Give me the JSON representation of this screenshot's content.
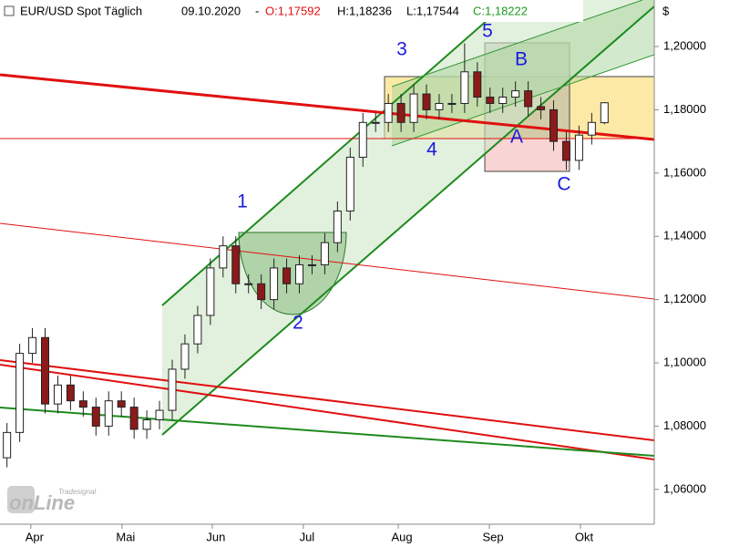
{
  "chart_data": {
    "type": "candlestick",
    "title": "EUR/USD Spot Täglich",
    "date": "09.10.2020",
    "quote": {
      "open": "O:1,17592",
      "high": "H:1,18236",
      "low": "L:1,17544",
      "close": "C:1,18222"
    },
    "y_axis_label": "$",
    "x": [
      1,
      4,
      7,
      10,
      13,
      16,
      19,
      22,
      25,
      28,
      31,
      34,
      37,
      40,
      43,
      46,
      49,
      52,
      55,
      58,
      61,
      64,
      67,
      70,
      73,
      76,
      79,
      82,
      85,
      88,
      91,
      94,
      97,
      100,
      103,
      106,
      109,
      112,
      115,
      118,
      121,
      124,
      127,
      130,
      133,
      136,
      139,
      142
    ],
    "open": [
      1.07,
      1.078,
      1.103,
      1.108,
      1.087,
      1.093,
      1.088,
      1.086,
      1.08,
      1.088,
      1.086,
      1.079,
      1.082,
      1.085,
      1.098,
      1.106,
      1.115,
      1.13,
      1.137,
      1.125,
      1.125,
      1.12,
      1.13,
      1.125,
      1.131,
      1.131,
      1.138,
      1.148,
      1.165,
      1.176,
      1.176,
      1.182,
      1.176,
      1.185,
      1.18,
      1.182,
      1.182,
      1.192,
      1.184,
      1.182,
      1.184,
      1.186,
      1.181,
      1.18,
      1.17,
      1.164,
      1.172,
      1.17592
    ],
    "high": [
      1.081,
      1.106,
      1.111,
      1.111,
      1.096,
      1.096,
      1.091,
      1.089,
      1.091,
      1.091,
      1.089,
      1.085,
      1.088,
      1.101,
      1.109,
      1.118,
      1.133,
      1.14,
      1.14,
      1.128,
      1.128,
      1.133,
      1.133,
      1.134,
      1.134,
      1.141,
      1.151,
      1.168,
      1.179,
      1.179,
      1.185,
      1.185,
      1.188,
      1.188,
      1.185,
      1.185,
      1.201,
      1.195,
      1.187,
      1.187,
      1.189,
      1.189,
      1.184,
      1.183,
      1.173,
      1.175,
      1.179,
      1.18236
    ],
    "low": [
      1.067,
      1.075,
      1.1,
      1.084,
      1.084,
      1.085,
      1.083,
      1.077,
      1.077,
      1.083,
      1.076,
      1.076,
      1.079,
      1.082,
      1.095,
      1.103,
      1.112,
      1.127,
      1.122,
      1.122,
      1.117,
      1.117,
      1.122,
      1.122,
      1.128,
      1.128,
      1.135,
      1.145,
      1.162,
      1.173,
      1.173,
      1.173,
      1.173,
      1.177,
      1.177,
      1.179,
      1.179,
      1.181,
      1.179,
      1.179,
      1.181,
      1.178,
      1.177,
      1.167,
      1.161,
      1.161,
      1.169,
      1.17544
    ],
    "close": [
      1.078,
      1.103,
      1.108,
      1.087,
      1.093,
      1.088,
      1.086,
      1.08,
      1.088,
      1.086,
      1.079,
      1.082,
      1.085,
      1.098,
      1.106,
      1.115,
      1.13,
      1.137,
      1.125,
      1.125,
      1.12,
      1.13,
      1.125,
      1.131,
      1.131,
      1.138,
      1.148,
      1.165,
      1.176,
      1.176,
      1.182,
      1.176,
      1.185,
      1.18,
      1.182,
      1.182,
      1.192,
      1.184,
      1.182,
      1.184,
      1.186,
      1.181,
      1.18,
      1.17,
      1.164,
      1.172,
      1.176,
      1.18222
    ],
    "up_color": "#ffffff",
    "down_color": "#8b1a1a",
    "xlim": [
      -0.645,
      153.76
    ],
    "xticks": [
      {
        "value": 7.5,
        "label": "Apr"
      },
      {
        "value": 29,
        "label": "Mai"
      },
      {
        "value": 50.3,
        "label": "Jun"
      },
      {
        "value": 71.8,
        "label": "Jul"
      },
      {
        "value": 94.2,
        "label": "Aug"
      },
      {
        "value": 115.7,
        "label": "Sep"
      },
      {
        "value": 137.2,
        "label": "Okt"
      }
    ],
    "ylim": [
      1.049,
      1.2147
    ],
    "yticks": [
      {
        "value": 1.06,
        "label": "1,06000"
      },
      {
        "value": 1.08,
        "label": "1,08000"
      },
      {
        "value": 1.1,
        "label": "1,10000"
      },
      {
        "value": 1.12,
        "label": "1,12000"
      },
      {
        "value": 1.14,
        "label": "1,14000"
      },
      {
        "value": 1.16,
        "label": "1,16000"
      },
      {
        "value": 1.18,
        "label": "1,18000"
      },
      {
        "value": 1.2,
        "label": "1,20000"
      }
    ],
    "grid": false,
    "annotations": [
      "1",
      "2",
      "3",
      "4",
      "5",
      "A",
      "B",
      "C"
    ],
    "logo": {
      "brand": "Tradesignal",
      "name": "onLine"
    }
  }
}
